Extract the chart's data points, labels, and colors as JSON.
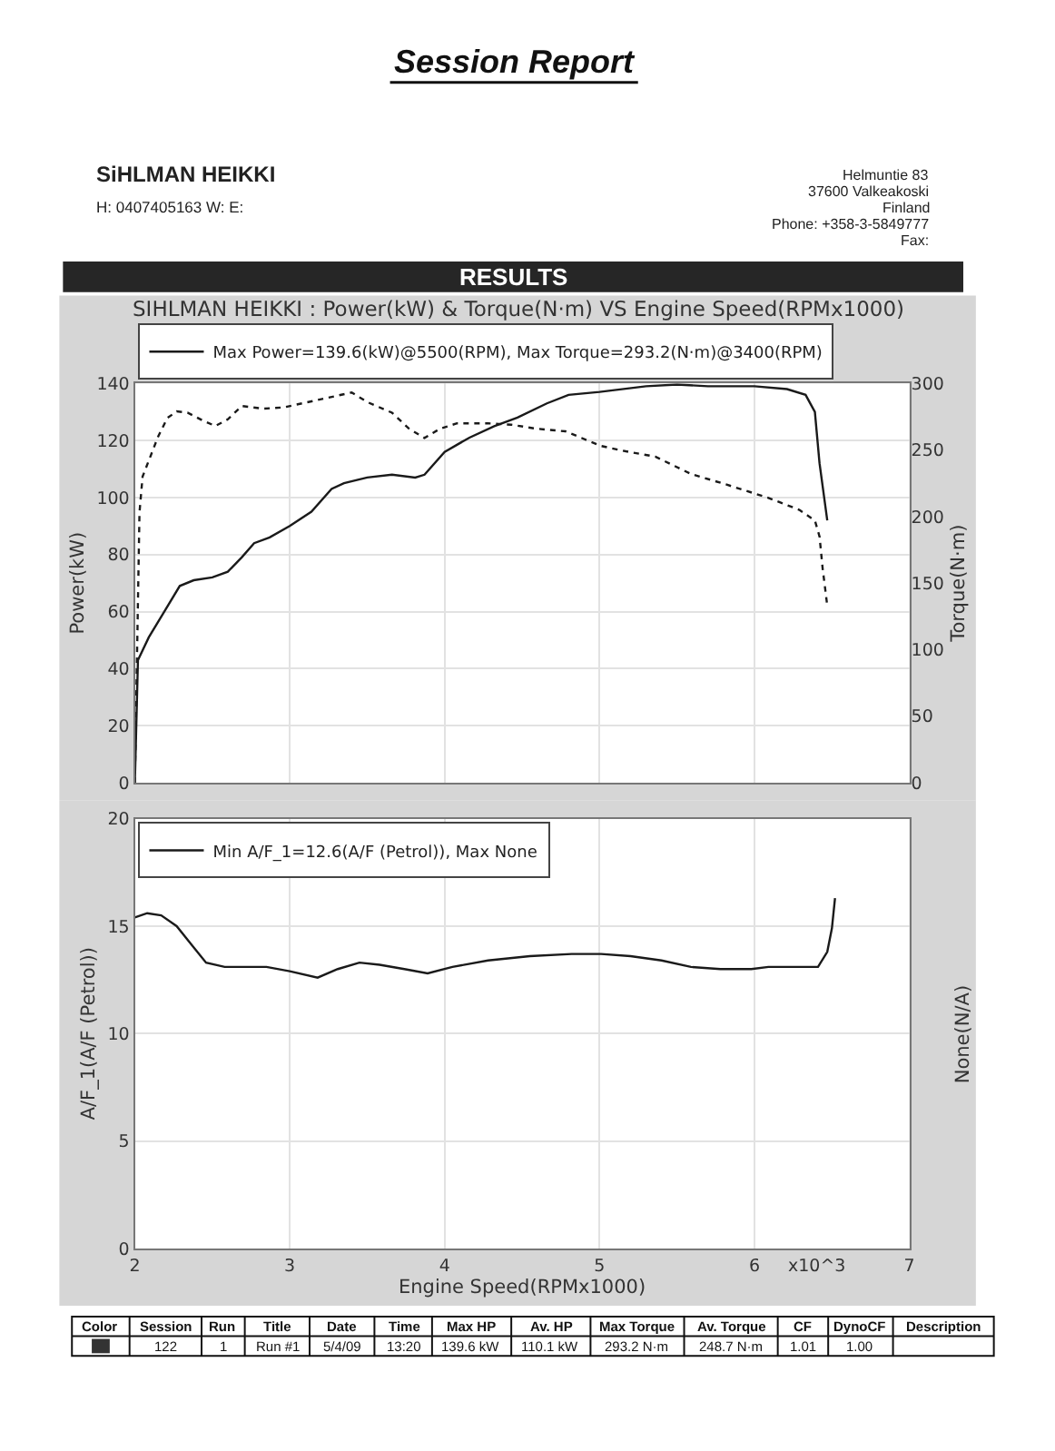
{
  "chart_data": [
    {
      "type": "other",
      "title": "Session Report",
      "subtitle": "RESULTS",
      "annotations": [
        "SiHLMAN HEIKKI",
        "H: 0407405163 W: E:",
        "Helmuntie 83",
        "37600 Valkeakoski",
        "Finland",
        "Phone: +358-3-5849777",
        "Fax:"
      ]
    },
    {
      "type": "line",
      "title": "SIHLMAN HEIKKI : Power(kW) & Torque(N·m) VS Engine Speed(RPMx1000)",
      "ylabel": "Power(kW)",
      "y2label": "Torque(N·m)",
      "xlim": [
        2,
        7
      ],
      "xticks": [
        2,
        3,
        4,
        5,
        6,
        7
      ],
      "ylim": [
        0,
        140
      ],
      "yticks": [
        0,
        20,
        40,
        60,
        80,
        100,
        120,
        140
      ],
      "y2lim": [
        0,
        300
      ],
      "y2ticks": [
        0,
        50,
        100,
        150,
        200,
        250,
        300
      ],
      "tick_labels": "y",
      "grid": true,
      "legend": "top left",
      "series": [
        {
          "name": "Max Power=139.6(kW)@5500(RPM), Max Torque=293.2(N·m)@3400(RPM)",
          "color": "#1a1a1a",
          "line_style": "solid",
          "x": [
            2.0,
            2.02,
            2.09,
            2.19,
            2.29,
            2.38,
            2.5,
            2.6,
            2.69,
            2.77,
            2.87,
            3.0,
            3.14,
            3.27,
            3.35,
            3.5,
            3.66,
            3.81,
            3.87,
            4.0,
            4.16,
            4.32,
            4.47,
            4.66,
            4.8,
            5.0,
            5.3,
            5.5,
            5.7,
            6.0,
            6.21,
            6.33,
            6.39,
            6.42,
            6.47
          ],
          "values": [
            0,
            43,
            51,
            60,
            69,
            71,
            72,
            74,
            79,
            84,
            86,
            90,
            95,
            103,
            105,
            107,
            108,
            107,
            108,
            116,
            121,
            125,
            128,
            133,
            136,
            137,
            139,
            139.6,
            139,
            139,
            138,
            136,
            130,
            112,
            92
          ]
        },
        {
          "color": "#1a1a1a",
          "line_style": "dotted",
          "axis": "y2",
          "x": [
            2.0,
            2.03,
            2.05,
            2.09,
            2.15,
            2.21,
            2.27,
            2.34,
            2.44,
            2.52,
            2.6,
            2.69,
            2.83,
            2.96,
            3.12,
            3.4,
            3.5,
            3.66,
            3.77,
            3.87,
            3.97,
            4.08,
            4.28,
            4.43,
            4.59,
            4.78,
            5.01,
            5.17,
            5.36,
            5.59,
            5.82,
            6.09,
            6.29,
            6.39,
            6.42,
            6.44,
            6.47
          ],
          "values": [
            0,
            203,
            230,
            242,
            260,
            274,
            279,
            278,
            272,
            268,
            273,
            283,
            281,
            282,
            286,
            293.2,
            286,
            278,
            266,
            259,
            266,
            270,
            270,
            269,
            266,
            264,
            253,
            249,
            245,
            232,
            224,
            214,
            205,
            197,
            185,
            161,
            133
          ]
        }
      ]
    },
    {
      "type": "line",
      "xlabel": "Engine Speed(RPMx1000)",
      "ylabel": "A/F_1(A/F (Petrol))",
      "y2label": "None(N/A)",
      "xlim": [
        2,
        7
      ],
      "xticks": [
        2,
        3,
        4,
        5,
        6,
        7
      ],
      "ylim": [
        0,
        20
      ],
      "yticks": [
        0,
        5,
        10,
        15,
        20
      ],
      "grid": true,
      "legend": "top left",
      "annotations": [
        "x10^3"
      ],
      "series": [
        {
          "name": "Min A/F_1=12.6(A/F (Petrol)), Max None",
          "color": "#1a1a1a",
          "line_style": "solid",
          "x": [
            2.0,
            2.08,
            2.17,
            2.27,
            2.37,
            2.46,
            2.58,
            2.73,
            2.85,
            3.0,
            3.18,
            3.31,
            3.45,
            3.58,
            3.74,
            3.89,
            4.05,
            4.28,
            4.55,
            4.82,
            5.01,
            5.2,
            5.4,
            5.59,
            5.78,
            5.98,
            6.09,
            6.29,
            6.41,
            6.47,
            6.5,
            6.52
          ],
          "values": [
            15.4,
            15.6,
            15.5,
            15.0,
            14.1,
            13.3,
            13.1,
            13.1,
            13.1,
            12.9,
            12.6,
            13.0,
            13.3,
            13.2,
            13.0,
            12.8,
            13.1,
            13.4,
            13.6,
            13.7,
            13.7,
            13.6,
            13.4,
            13.1,
            13.0,
            13.0,
            13.1,
            13.1,
            13.1,
            13.8,
            14.9,
            16.3
          ]
        }
      ]
    },
    {
      "type": "other",
      "color": "#333333",
      "categories": [
        "Color",
        "Session",
        "Run",
        "Title",
        "Date",
        "Time",
        "Max HP",
        "Av. HP",
        "Max Torque",
        "Av. Torque",
        "CF",
        "DynoCF",
        "Description"
      ],
      "cell_labels": [
        [
          null,
          "122",
          "1",
          "Run #1",
          "5/4/09",
          "13:20",
          "139.6 kW",
          "110.1 kW",
          "293.2 N·m",
          "248.7 N·m",
          "1.01",
          "1.00",
          null
        ]
      ]
    }
  ]
}
